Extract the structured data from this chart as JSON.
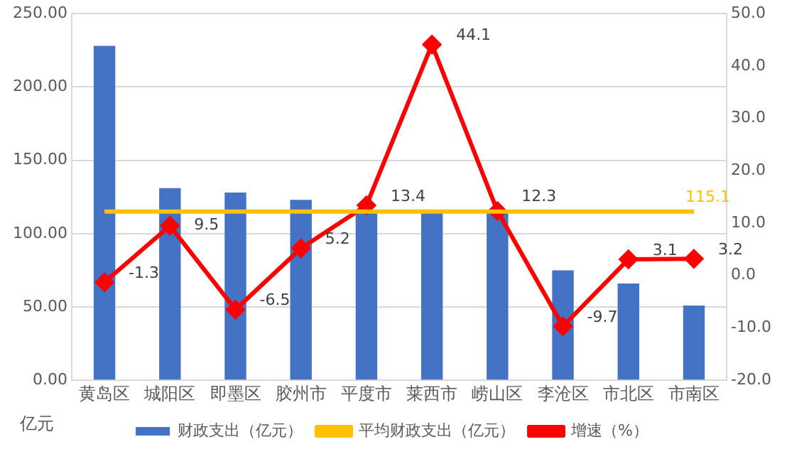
{
  "chart_data": {
    "type": "bar",
    "ylabel": "亿元",
    "categories": [
      "黄岛区",
      "城阳区",
      "即墨区",
      "胶州市",
      "平度市",
      "莱西市",
      "崂山区",
      "李沧区",
      "市北区",
      "市南区"
    ],
    "series": [
      {
        "name": "财政支出（亿元）",
        "color": "#4472c4",
        "values": [
          228,
          131,
          128,
          123,
          114,
          114,
          114,
          75,
          66,
          51
        ]
      },
      {
        "name": "平均财政支出（亿元）",
        "type": "line",
        "color": "#ffc000",
        "marker": "none",
        "values": [
          115.1,
          115.1,
          115.1,
          115.1,
          115.1,
          115.1,
          115.1,
          115.1,
          115.1,
          115.1
        ],
        "value_labels": [
          null,
          null,
          null,
          null,
          null,
          null,
          null,
          null,
          null,
          "115.1"
        ]
      },
      {
        "name": "增速（%）",
        "type": "line",
        "axis": "y2",
        "color": "#ff0000",
        "marker": "diamond",
        "values": [
          -1.3,
          9.5,
          -6.5,
          5.2,
          13.4,
          44.1,
          12.3,
          -9.7,
          3.1,
          3.2
        ],
        "value_labels": [
          "-1.3",
          "9.5",
          "-6.5",
          "5.2",
          "13.4",
          "44.1",
          "12.3",
          "-9.7",
          "3.1",
          "3.2"
        ]
      }
    ],
    "ylim": [
      0,
      250
    ],
    "yticks": [
      {
        "value": 0,
        "label": "0.00"
      },
      {
        "value": 50,
        "label": "50.00"
      },
      {
        "value": 100,
        "label": "100.00"
      },
      {
        "value": 150,
        "label": "150.00"
      },
      {
        "value": 200,
        "label": "200.00"
      },
      {
        "value": 250,
        "label": "250.00"
      }
    ],
    "y2lim": [
      -20,
      50
    ],
    "y2ticks": [
      {
        "value": -20,
        "label": "-20.0"
      },
      {
        "value": -10,
        "label": "-10.0"
      },
      {
        "value": 0,
        "label": "0.0"
      },
      {
        "value": 10,
        "label": "10.0"
      },
      {
        "value": 20,
        "label": "20.0"
      },
      {
        "value": 30,
        "label": "30.0"
      },
      {
        "value": 40,
        "label": "40.0"
      },
      {
        "value": 50,
        "label": "50.0"
      }
    ],
    "grid": "y",
    "legend": "bottom"
  }
}
